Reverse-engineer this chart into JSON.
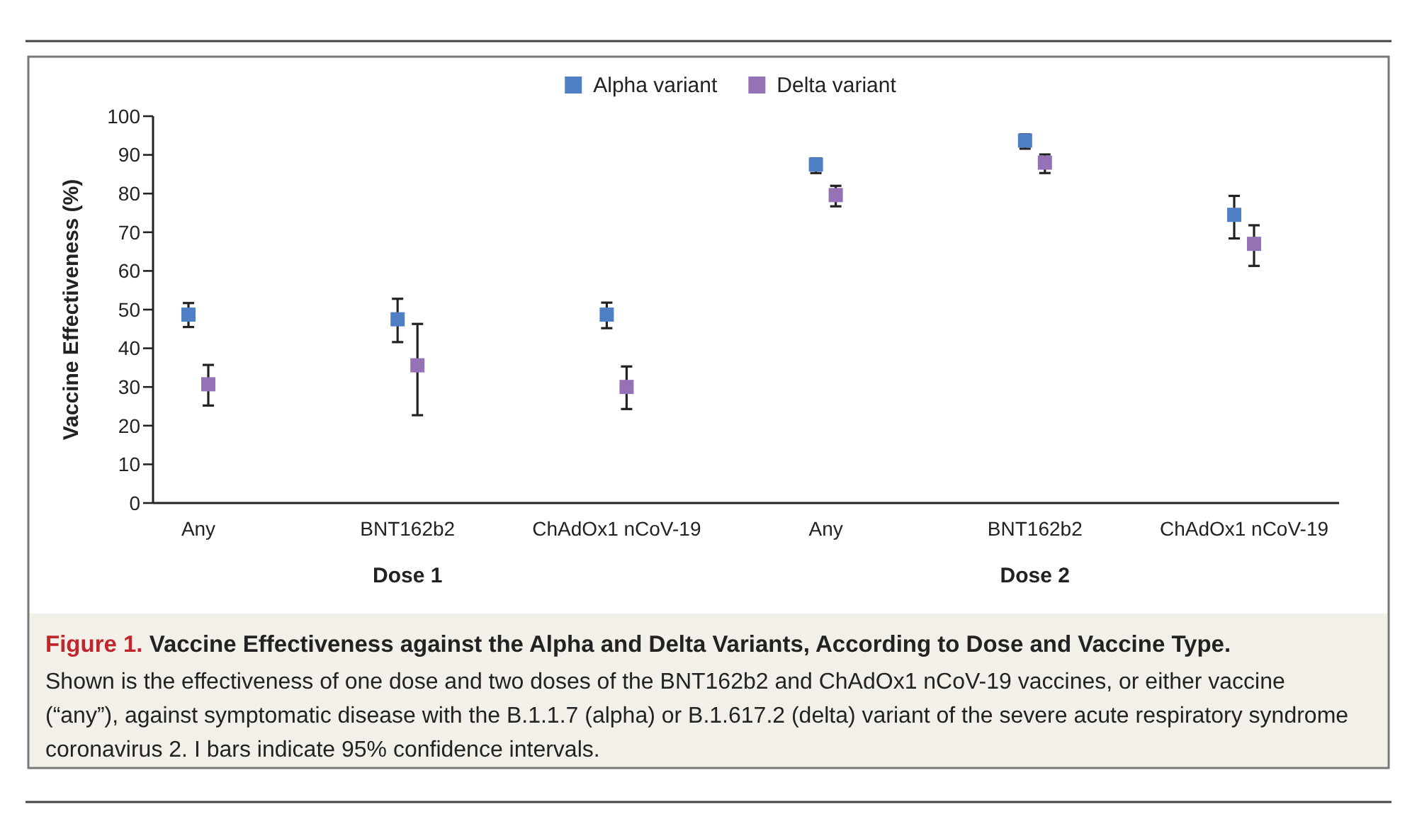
{
  "chart_data": {
    "type": "scatter",
    "title": "Figure 1. Vaccine Effectiveness against the Alpha and Delta Variants, According to Dose and Vaccine Type.",
    "subtitle": "Shown is the effectiveness of one dose and two doses of the BNT162b2 and ChAdOx1 nCoV-19 vaccines, or either vaccine (“any”), against symptomatic disease with the B.1.1.7 (alpha) or B.1.617.2 (delta) variant of the severe acute respiratory syndrome coronavirus 2. I bars indicate 95% confidence intervals.",
    "ylabel": "Vaccine Effectiveness (%)",
    "annotations": [
      "Dose 1",
      "Dose 2"
    ],
    "categories": [
      "Any",
      "BNT162b2",
      "ChAdOx1 nCoV-19",
      "Any",
      "BNT162b2",
      "ChAdOx1 nCoV-19"
    ],
    "series": [
      {
        "name": "Alpha variant",
        "color": "#4f7fc4",
        "values": [
          48.7,
          47.5,
          48.7,
          87.5,
          93.7,
          74.5
        ],
        "errors": [
          [
            45.5,
            51.7
          ],
          [
            41.6,
            52.8
          ],
          [
            45.2,
            51.8
          ],
          [
            85.3,
            89.1
          ],
          [
            91.6,
            95.3
          ],
          [
            68.4,
            79.4
          ]
        ]
      },
      {
        "name": "Delta variant",
        "color": "#9572b5",
        "values": [
          30.7,
          35.6,
          30.0,
          79.6,
          88.0,
          67.0
        ],
        "errors": [
          [
            25.2,
            35.7
          ],
          [
            22.7,
            46.3
          ],
          [
            24.3,
            35.3
          ],
          [
            76.7,
            82.0
          ],
          [
            85.3,
            90.1
          ],
          [
            61.3,
            71.8
          ]
        ]
      }
    ],
    "ylim": [
      0,
      100
    ],
    "yticks": [
      0,
      10,
      20,
      30,
      40,
      50,
      60,
      70,
      80,
      90,
      100
    ],
    "marker": "square",
    "legend": "top",
    "grid": false
  }
}
